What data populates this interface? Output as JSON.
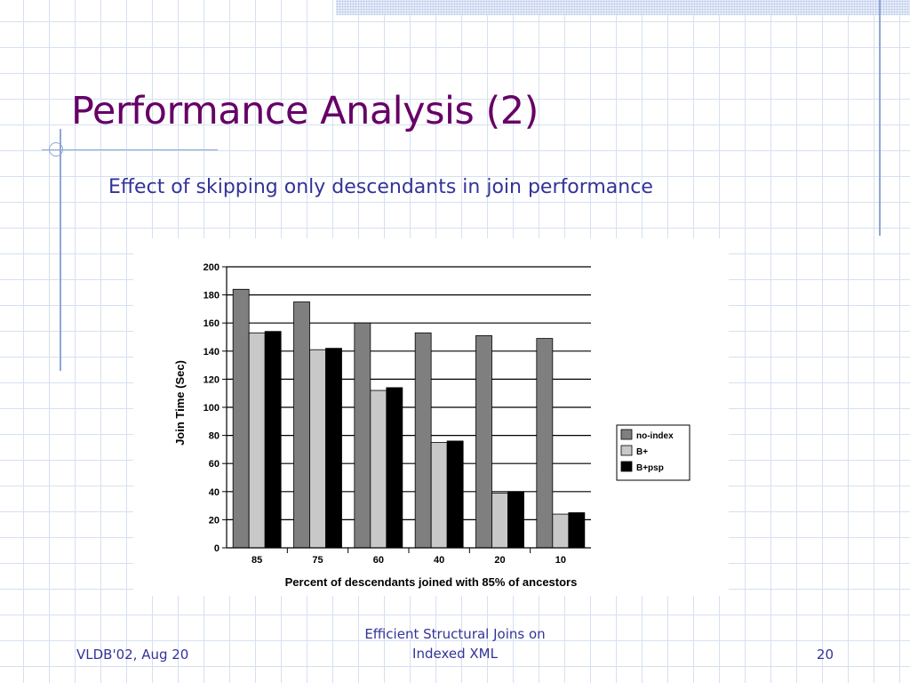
{
  "slide": {
    "title": "Performance Analysis (2)",
    "subtitle": "Effect of skipping only descendants in join performance",
    "footer_left": "VLDB'02, Aug 20",
    "footer_center_line1": "Efficient Structural Joins on",
    "footer_center_line2": "Indexed XML",
    "footer_right": "20"
  },
  "chart_data": {
    "type": "bar",
    "title": "",
    "xlabel": "Percent of descendants joined with 85% of ancestors",
    "ylabel": "Join Time (Sec)",
    "categories": [
      "85",
      "75",
      "60",
      "40",
      "20",
      "10"
    ],
    "ylim": [
      0,
      200
    ],
    "yticks": [
      0,
      20,
      40,
      60,
      80,
      100,
      120,
      140,
      160,
      180,
      200
    ],
    "grid": true,
    "legend_position": "right",
    "series": [
      {
        "name": "no-index",
        "color": "#7f7f7f",
        "values": [
          184,
          175,
          160,
          153,
          151,
          149
        ]
      },
      {
        "name": "B+",
        "color": "#c8c8c8",
        "values": [
          153,
          141,
          112,
          75,
          39,
          24
        ]
      },
      {
        "name": "B+psp",
        "color": "#000000",
        "values": [
          154,
          142,
          114,
          76,
          40,
          25
        ]
      }
    ]
  }
}
